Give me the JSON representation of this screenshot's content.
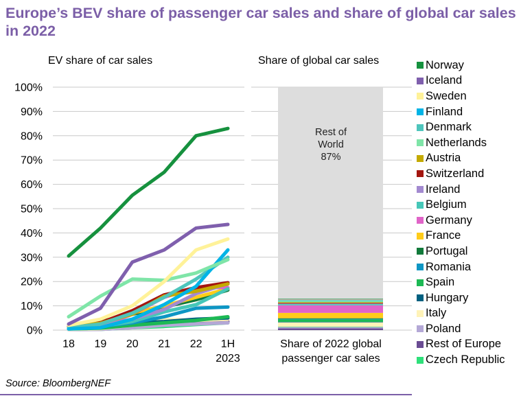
{
  "title": "Europe’s BEV share of passenger car sales and share of global car sales in 2022",
  "source": "Source: BloombergNEF",
  "chart_data": [
    {
      "type": "line",
      "title": "EV share of car sales",
      "xlabel": "",
      "ylabel": "",
      "categories": [
        "18",
        "19",
        "20",
        "21",
        "22",
        "1H 2023"
      ],
      "category_lines": [
        [
          "18"
        ],
        [
          "19"
        ],
        [
          "20"
        ],
        [
          "21"
        ],
        [
          "22"
        ],
        [
          "1H",
          "2023"
        ]
      ],
      "ylim": [
        0,
        100
      ],
      "yticks": [
        "0%",
        "10%",
        "20%",
        "30%",
        "40%",
        "50%",
        "60%",
        "70%",
        "80%",
        "90%",
        "100%"
      ],
      "grid": true,
      "series": [
        {
          "name": "Czech Republic",
          "color": "#2ee07a",
          "values": [
            0.3,
            0.3,
            1.0,
            1.5,
            2.3,
            3.0
          ]
        },
        {
          "name": "Rest of Europe",
          "color": "#6a4c93",
          "values": [
            0.5,
            0.6,
            1.5,
            2.5,
            3.0,
            3.5
          ]
        },
        {
          "name": "Poland",
          "color": "#b4a8d6",
          "values": [
            0.2,
            0.3,
            1.0,
            2.0,
            2.5,
            3.0
          ]
        },
        {
          "name": "Italy",
          "color": "#fff3b8",
          "values": [
            0.3,
            0.6,
            2.0,
            4.5,
            4.0,
            4.5
          ]
        },
        {
          "name": "Hungary",
          "color": "#006080",
          "values": [
            1.5,
            2.0,
            3.0,
            3.5,
            4.5,
            5.0
          ]
        },
        {
          "name": "Spain",
          "color": "#1db954",
          "values": [
            0.5,
            0.8,
            2.0,
            3.0,
            4.0,
            5.5
          ]
        },
        {
          "name": "Romania",
          "color": "#0e96c4",
          "values": [
            1.0,
            1.5,
            3.0,
            5.5,
            9.0,
            9.5
          ]
        },
        {
          "name": "Portugal",
          "color": "#117a3b",
          "values": [
            2.0,
            3.5,
            6.5,
            9.5,
            12.5,
            16.5
          ]
        },
        {
          "name": "France",
          "color": "#ffcc1a",
          "values": [
            1.5,
            2.0,
            7.0,
            10.0,
            13.5,
            17.0
          ]
        },
        {
          "name": "Germany",
          "color": "#e064c8",
          "values": [
            1.0,
            1.8,
            6.5,
            13.5,
            17.5,
            17.5
          ]
        },
        {
          "name": "Belgium",
          "color": "#46c7b8",
          "values": [
            0.5,
            1.5,
            3.5,
            7.5,
            10.5,
            17.0
          ]
        },
        {
          "name": "Ireland",
          "color": "#a38ad0",
          "values": [
            1.0,
            2.0,
            4.5,
            8.5,
            15.0,
            19.0
          ]
        },
        {
          "name": "Switzerland",
          "color": "#a3160f",
          "values": [
            1.8,
            3.0,
            8.0,
            14.5,
            17.5,
            19.5
          ]
        },
        {
          "name": "Austria",
          "color": "#c4aa00",
          "values": [
            2.0,
            2.8,
            6.5,
            14.0,
            16.0,
            19.0
          ]
        },
        {
          "name": "Denmark",
          "color": "#4ec5bc",
          "values": [
            1.0,
            2.5,
            7.0,
            13.5,
            21.0,
            30.0
          ]
        },
        {
          "name": "Finland",
          "color": "#00b4e6",
          "values": [
            0.5,
            1.0,
            4.5,
            10.5,
            18.0,
            33.0
          ]
        },
        {
          "name": "Netherlands",
          "color": "#7fe5a8",
          "values": [
            5.5,
            14.0,
            21.0,
            20.5,
            23.5,
            29.0
          ]
        },
        {
          "name": "Sweden",
          "color": "#fff299",
          "values": [
            2.0,
            4.5,
            10.0,
            20.0,
            33.0,
            37.5
          ]
        },
        {
          "name": "Iceland",
          "color": "#7f5fad",
          "values": [
            2.5,
            9.0,
            28.0,
            33.0,
            42.0,
            43.5
          ]
        },
        {
          "name": "Norway",
          "color": "#16913e",
          "values": [
            30.5,
            42.0,
            55.5,
            65.0,
            80.0,
            83.0
          ]
        }
      ]
    },
    {
      "type": "bar",
      "stacked": true,
      "title": "Share of global car sales",
      "categories": [
        "Share of 2022 global passenger car sales"
      ],
      "category_lines": [
        "Share of 2022 global",
        "passenger car sales"
      ],
      "ylim": [
        0,
        100
      ],
      "annotation": {
        "lines": [
          "Rest of",
          "World",
          "87%"
        ]
      },
      "series": [
        {
          "name": "Rest of Europe",
          "color": "#6a4c93",
          "value": 0.7
        },
        {
          "name": "Poland",
          "color": "#b4a8d6",
          "value": 0.6
        },
        {
          "name": "Czech Republic",
          "color": "#2ee07a",
          "value": 0.1
        },
        {
          "name": "Italy",
          "color": "#fff3b8",
          "value": 1.8
        },
        {
          "name": "Hungary",
          "color": "#006080",
          "value": 0.2
        },
        {
          "name": "Spain",
          "color": "#1db954",
          "value": 1.0
        },
        {
          "name": "Romania",
          "color": "#0e96c4",
          "value": 0.2
        },
        {
          "name": "Portugal",
          "color": "#117a3b",
          "value": 0.3
        },
        {
          "name": "France",
          "color": "#ffcc1a",
          "value": 2.2
        },
        {
          "name": "Germany",
          "color": "#e064c8",
          "value": 3.1
        },
        {
          "name": "Belgium",
          "color": "#46c7b8",
          "value": 0.5
        },
        {
          "name": "Ireland",
          "color": "#a38ad0",
          "value": 0.2
        },
        {
          "name": "Switzerland",
          "color": "#a3160f",
          "value": 0.3
        },
        {
          "name": "Austria",
          "color": "#c4aa00",
          "value": 0.3
        },
        {
          "name": "Netherlands",
          "color": "#7fe5a8",
          "value": 0.5
        },
        {
          "name": "Denmark",
          "color": "#4ec5bc",
          "value": 0.2
        },
        {
          "name": "Finland",
          "color": "#00b4e6",
          "value": 0.1
        },
        {
          "name": "Sweden",
          "color": "#fff299",
          "value": 0.4
        },
        {
          "name": "Iceland",
          "color": "#7f5fad",
          "value": 0.05
        },
        {
          "name": "Norway",
          "color": "#16913e",
          "value": 0.2
        },
        {
          "name": "Rest of World",
          "color": "#dddddd",
          "value": 87
        }
      ]
    }
  ],
  "legend": {
    "placement": "right",
    "items": [
      {
        "label": "Norway",
        "color": "#16913e"
      },
      {
        "label": "Iceland",
        "color": "#7f5fad"
      },
      {
        "label": "Sweden",
        "color": "#fff299"
      },
      {
        "label": "Finland",
        "color": "#00b4e6"
      },
      {
        "label": "Denmark",
        "color": "#4ec5bc"
      },
      {
        "label": "Netherlands",
        "color": "#7fe5a8"
      },
      {
        "label": "Austria",
        "color": "#c4aa00"
      },
      {
        "label": "Switzerland",
        "color": "#a3160f"
      },
      {
        "label": "Ireland",
        "color": "#a38ad0"
      },
      {
        "label": "Belgium",
        "color": "#46c7b8"
      },
      {
        "label": "Germany",
        "color": "#e064c8"
      },
      {
        "label": "France",
        "color": "#ffcc1a"
      },
      {
        "label": "Portugal",
        "color": "#117a3b"
      },
      {
        "label": "Romania",
        "color": "#0e96c4"
      },
      {
        "label": "Spain",
        "color": "#1db954"
      },
      {
        "label": "Hungary",
        "color": "#006080"
      },
      {
        "label": "Italy",
        "color": "#fff3b8"
      },
      {
        "label": "Poland",
        "color": "#b4a8d6"
      },
      {
        "label": "Rest of Europe",
        "color": "#6a4c93"
      },
      {
        "label": "Czech Republic",
        "color": "#2ee07a"
      }
    ]
  }
}
